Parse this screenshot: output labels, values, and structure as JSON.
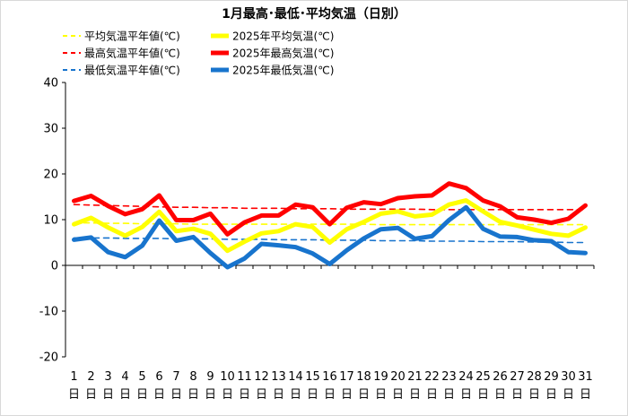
{
  "chart_data": {
    "type": "line",
    "title": "1月最高･最低･平均気温（日別）",
    "ylim": [
      -20,
      40
    ],
    "yticks": [
      40,
      30,
      20,
      10,
      0,
      -10,
      -20
    ],
    "x_labels": [
      "1日",
      "2日",
      "3日",
      "4日",
      "5日",
      "6日",
      "7日",
      "8日",
      "9日",
      "10日",
      "11日",
      "12日",
      "13日",
      "14日",
      "15日",
      "16日",
      "17日",
      "18日",
      "19日",
      "20日",
      "21日",
      "22日",
      "23日",
      "24日",
      "25日",
      "26日",
      "27日",
      "28日",
      "29日",
      "30日",
      "31日"
    ],
    "series": [
      {
        "name": "平均気温平年値(℃)",
        "color": "#ffff00",
        "style": "dashed",
        "values": [
          9.3,
          9.3,
          9.2,
          9.2,
          9.1,
          9.1,
          9.1,
          9.0,
          9.0,
          9.0,
          9.0,
          9.0,
          9.0,
          9.0,
          9.0,
          9.0,
          9.0,
          9.0,
          8.9,
          8.9,
          8.9,
          8.9,
          8.9,
          8.9,
          8.9,
          8.9,
          8.9,
          8.9,
          8.9,
          8.9,
          8.9
        ]
      },
      {
        "name": "最高気温平年値(℃)",
        "color": "#ff0000",
        "style": "dashed",
        "values": [
          13.3,
          13.2,
          13.1,
          13.0,
          12.9,
          12.8,
          12.7,
          12.7,
          12.6,
          12.6,
          12.5,
          12.5,
          12.5,
          12.4,
          12.4,
          12.4,
          12.3,
          12.3,
          12.3,
          12.3,
          12.3,
          12.2,
          12.2,
          12.2,
          12.2,
          12.2,
          12.2,
          12.2,
          12.2,
          12.2,
          12.2
        ]
      },
      {
        "name": "最低気温平年値(℃)",
        "color": "#1874cd",
        "style": "dashed",
        "values": [
          6.0,
          6.0,
          6.0,
          5.9,
          5.9,
          5.9,
          5.8,
          5.8,
          5.8,
          5.7,
          5.7,
          5.7,
          5.6,
          5.6,
          5.6,
          5.5,
          5.5,
          5.5,
          5.4,
          5.4,
          5.4,
          5.3,
          5.3,
          5.3,
          5.2,
          5.2,
          5.2,
          5.1,
          5.1,
          5.0,
          5.0
        ]
      },
      {
        "name": "2025年平均気温(℃)",
        "color": "#ffff00",
        "style": "solid",
        "values": [
          9.0,
          10.4,
          8.3,
          6.5,
          8.4,
          11.7,
          7.5,
          8.0,
          6.9,
          3.2,
          5.2,
          7.0,
          7.5,
          9.0,
          8.4,
          5.0,
          7.9,
          9.5,
          11.3,
          11.8,
          10.7,
          11.1,
          13.3,
          14.2,
          11.8,
          9.5,
          8.7,
          7.8,
          6.9,
          6.5,
          8.3
        ]
      },
      {
        "name": "2025年最高気温(℃)",
        "color": "#ff0000",
        "style": "solid",
        "values": [
          14.1,
          15.2,
          13.0,
          11.2,
          12.3,
          15.3,
          9.9,
          9.9,
          11.3,
          6.8,
          9.4,
          10.9,
          10.9,
          13.3,
          12.7,
          9.0,
          12.6,
          13.8,
          13.4,
          14.7,
          15.1,
          15.3,
          17.9,
          16.9,
          14.2,
          12.9,
          10.5,
          10.0,
          9.3,
          10.2,
          13.1
        ]
      },
      {
        "name": "2025年最低気温(℃)",
        "color": "#1874cd",
        "style": "solid",
        "values": [
          5.6,
          6.1,
          2.9,
          1.8,
          4.3,
          9.8,
          5.4,
          6.2,
          2.7,
          -0.4,
          1.5,
          4.7,
          4.4,
          4.0,
          2.6,
          0.3,
          3.3,
          5.9,
          7.9,
          8.2,
          5.8,
          6.4,
          9.9,
          12.7,
          8.0,
          6.3,
          6.2,
          5.5,
          5.3,
          2.9,
          2.7
        ]
      }
    ],
    "legend_position": "top",
    "grid": false
  }
}
